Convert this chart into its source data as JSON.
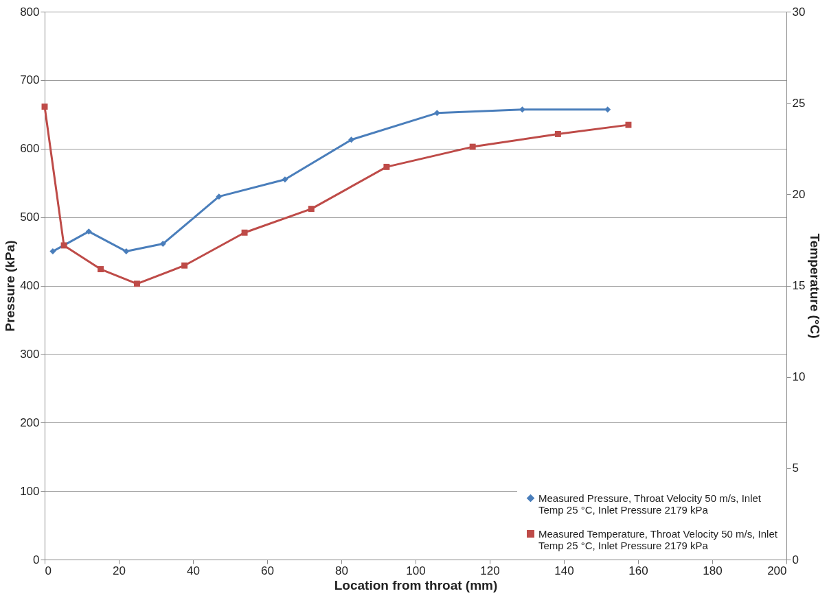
{
  "chart_data": {
    "type": "line",
    "xlabel": "Location from throat (mm)",
    "ylabel": "Pressure (kPa)",
    "y2label": "Temperature (°C)",
    "xlim": [
      0,
      200
    ],
    "xticks": [
      0,
      20,
      40,
      60,
      80,
      100,
      120,
      140,
      160,
      180,
      200
    ],
    "ylim": [
      0,
      800
    ],
    "yticks": [
      0,
      100,
      200,
      300,
      400,
      500,
      600,
      700,
      800
    ],
    "y2lim": [
      0,
      30
    ],
    "y2ticks": [
      0,
      5,
      10,
      15,
      20,
      25,
      30
    ],
    "grid": "y",
    "legend": "bottom right",
    "line_style": "solid",
    "series": [
      {
        "name": "Measured Pressure, Throat Velocity 50 m/s, Inlet Temp 25 °C, Inlet Pressure 2179 kPa",
        "color": "#4a7ebb",
        "marker": "diamond",
        "x": [
          2.2,
          11.9,
          22,
          31.9,
          47,
          64.8,
          82.7,
          105.8,
          128.8,
          151.8
        ],
        "values": [
          450,
          479,
          450,
          461,
          530,
          555,
          613,
          652,
          657,
          657
        ]
      },
      {
        "name": "Measured Temperature, Throat Velocity 50 m/s, Inlet Temp 25 °C, Inlet Pressure 2179 kPa",
        "color": "#be4b48",
        "marker": "square",
        "axis": "y2",
        "x": [
          0,
          5.2,
          15.1,
          24.9,
          37.7,
          53.9,
          71.9,
          92.2,
          115.4,
          138.4,
          157.4
        ],
        "values": [
          24.8,
          17.2,
          15.9,
          15.1,
          16.1,
          17.9,
          19.2,
          21.5,
          22.6,
          23.3,
          23.8
        ]
      }
    ]
  }
}
